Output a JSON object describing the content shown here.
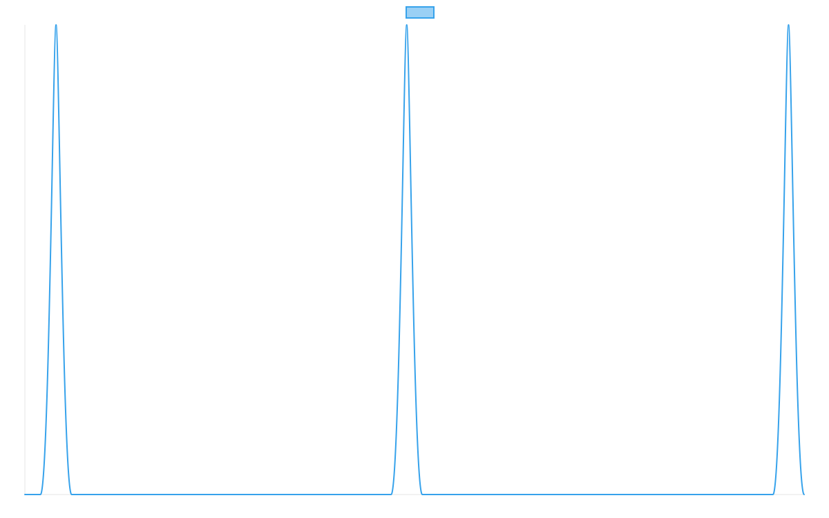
{
  "chart_data": {
    "type": "line",
    "title": "",
    "xlabel": "",
    "ylabel": "",
    "xlim": [
      0,
      100
    ],
    "ylim": [
      0,
      1
    ],
    "grid": false,
    "legend": {
      "position": "top-center",
      "entries": [
        ""
      ]
    },
    "series": [
      {
        "name": "",
        "color": "#36a2eb",
        "fill": "#9ad0f5",
        "x": [
          0,
          2,
          4,
          6,
          47,
          49,
          51,
          96,
          98,
          100
        ],
        "y": [
          0,
          0,
          1,
          0,
          0,
          1,
          0,
          0,
          1,
          0
        ]
      }
    ]
  }
}
